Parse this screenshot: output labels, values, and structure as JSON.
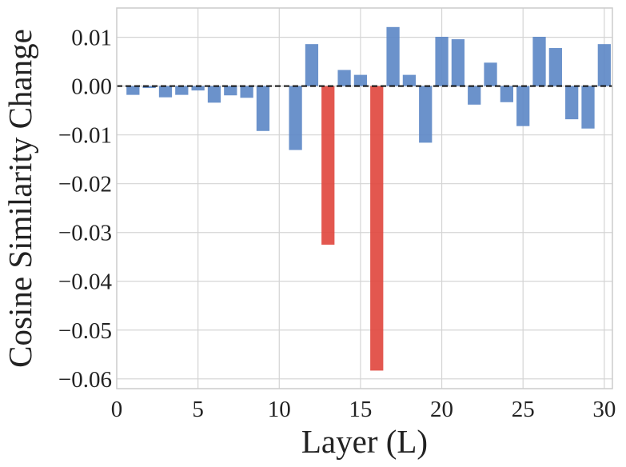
{
  "chart_data": {
    "type": "bar",
    "title": "",
    "xlabel": "Layer (L)",
    "ylabel": "Cosine Similarity Change",
    "x": [
      1,
      2,
      3,
      4,
      5,
      6,
      7,
      8,
      9,
      10,
      11,
      12,
      13,
      14,
      15,
      16,
      17,
      18,
      19,
      20,
      21,
      22,
      23,
      24,
      25,
      26,
      27,
      28,
      29,
      30
    ],
    "values": [
      -0.0018,
      -0.0004,
      -0.0023,
      -0.0018,
      -0.0009,
      -0.0034,
      -0.0019,
      -0.0024,
      -0.0092,
      0,
      -0.0131,
      0.0086,
      -0.0325,
      0.0033,
      0.0023,
      -0.0583,
      0.0121,
      0.0023,
      -0.0116,
      0.0101,
      0.0096,
      -0.0038,
      0.0048,
      -0.0033,
      -0.0082,
      0.0101,
      0.0078,
      -0.0068,
      -0.0087,
      0.0086
    ],
    "highlight_layers": [
      13,
      16
    ],
    "xlim": [
      0,
      30.5
    ],
    "ylim": [
      -0.062,
      0.016
    ],
    "xticks": [
      0,
      5,
      10,
      15,
      20,
      25,
      30
    ],
    "xtick_labels": [
      "0",
      "5",
      "10",
      "15",
      "20",
      "25",
      "30"
    ],
    "yticks": [
      0.01,
      0.0,
      -0.01,
      -0.02,
      -0.03,
      -0.04,
      -0.05,
      -0.06
    ],
    "ytick_labels": [
      "0.01",
      "0.00",
      "−0.01",
      "−0.02",
      "−0.03",
      "−0.04",
      "−0.05",
      "−0.06"
    ],
    "reference_line": {
      "y": 0,
      "style": "dashed"
    },
    "grid": true,
    "colors": {
      "bar": "#5b86c5",
      "highlight": "#e0453c",
      "zero_line": "#111111"
    }
  }
}
